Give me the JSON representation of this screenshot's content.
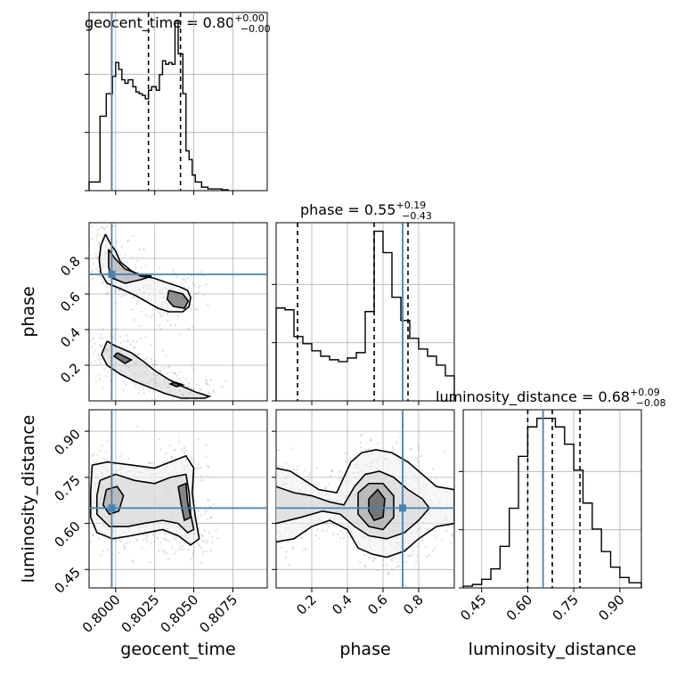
{
  "chart_data": {
    "type": "corner",
    "parameters": [
      {
        "name": "geocent_time",
        "axis_label": "geocent_time",
        "title": {
          "text": "geocent_time = 0.80",
          "plus": "+0.00",
          "minus": "−0.00"
        },
        "range": [
          0.7983,
          0.8097
        ],
        "ticks": [
          "0.8000",
          "0.8025",
          "0.8050",
          "0.8075"
        ],
        "tick_values": [
          0.8,
          0.8025,
          0.805,
          0.8075
        ],
        "quantiles": [
          0.79975,
          0.8021,
          0.80415
        ],
        "truth": 0.79975,
        "hist_bins": [
          0.7983,
          0.799,
          0.7994,
          0.7998,
          0.8,
          0.8002,
          0.8004,
          0.8006,
          0.8008,
          0.8011,
          0.8013,
          0.8015,
          0.8017,
          0.8019,
          0.8021,
          0.8023,
          0.8026,
          0.8028,
          0.803,
          0.8032,
          0.8034,
          0.8036,
          0.8038,
          0.804,
          0.8043,
          0.8045,
          0.8047,
          0.8049,
          0.8051,
          0.8055,
          0.8059,
          0.8063,
          0.8068,
          0.8072
        ],
        "hist_values": [
          0.05,
          0.43,
          0.56,
          0.66,
          0.74,
          0.7,
          0.64,
          0.62,
          0.64,
          0.6,
          0.57,
          0.56,
          0.55,
          0.53,
          0.58,
          0.6,
          0.58,
          0.67,
          0.75,
          0.73,
          0.74,
          0.73,
          0.98,
          0.79,
          0.56,
          0.23,
          0.18,
          0.09,
          0.05,
          0.02,
          0.01,
          0.01,
          0.005
        ]
      },
      {
        "name": "phase",
        "axis_label": "phase",
        "title": {
          "text": "phase = 0.55",
          "plus": "+0.19",
          "minus": "−0.43"
        },
        "range": [
          0.0,
          1.0
        ],
        "ticks": [
          "0.2",
          "0.4",
          "0.6",
          "0.8"
        ],
        "tick_values": [
          0.2,
          0.4,
          0.6,
          0.8
        ],
        "quantiles": [
          0.12,
          0.55,
          0.74
        ],
        "truth": 0.71,
        "hist_bins": [
          0.0,
          0.05,
          0.1,
          0.15,
          0.2,
          0.25,
          0.3,
          0.35,
          0.4,
          0.45,
          0.5,
          0.55,
          0.6,
          0.65,
          0.7,
          0.75,
          0.8,
          0.85,
          0.9,
          0.95,
          1.0
        ],
        "hist_values": [
          0.52,
          0.51,
          0.36,
          0.32,
          0.28,
          0.25,
          0.23,
          0.22,
          0.24,
          0.27,
          0.5,
          0.95,
          0.83,
          0.58,
          0.45,
          0.35,
          0.29,
          0.25,
          0.2,
          0.14
        ]
      },
      {
        "name": "luminosity_distance",
        "axis_label": "luminosity_distance",
        "title": {
          "text": "luminosity_distance = 0.68",
          "plus": "+0.09",
          "minus": "−0.08"
        },
        "range": [
          0.39,
          0.97
        ],
        "ticks": [
          "0.45",
          "0.60",
          "0.75",
          "0.90"
        ],
        "tick_values": [
          0.45,
          0.6,
          0.75,
          0.9
        ],
        "quantiles": [
          0.6,
          0.68,
          0.77
        ],
        "truth": 0.65,
        "hist_bins": [
          0.39,
          0.42,
          0.45,
          0.48,
          0.51,
          0.54,
          0.57,
          0.6,
          0.63,
          0.66,
          0.69,
          0.72,
          0.75,
          0.78,
          0.81,
          0.84,
          0.87,
          0.9,
          0.93,
          0.97
        ],
        "hist_values": [
          0.01,
          0.02,
          0.05,
          0.11,
          0.24,
          0.46,
          0.76,
          0.93,
          0.98,
          0.98,
          0.93,
          0.83,
          0.68,
          0.49,
          0.34,
          0.21,
          0.12,
          0.06,
          0.03
        ]
      }
    ],
    "pairs": [
      {
        "x": "geocent_time",
        "y": "phase",
        "contours": [
          [
            [
              0.79935,
              0.935
            ],
            [
              0.79965,
              0.885
            ],
            [
              0.8,
              0.84
            ],
            [
              0.8003,
              0.78
            ],
            [
              0.801,
              0.73
            ],
            [
              0.8016,
              0.7
            ],
            [
              0.8024,
              0.69
            ],
            [
              0.8034,
              0.66
            ],
            [
              0.8041,
              0.64
            ],
            [
              0.8046,
              0.62
            ],
            [
              0.8048,
              0.58
            ],
            [
              0.8047,
              0.53
            ],
            [
              0.8043,
              0.5
            ],
            [
              0.8034,
              0.5
            ],
            [
              0.8027,
              0.52
            ],
            [
              0.8021,
              0.55
            ],
            [
              0.8013,
              0.59
            ],
            [
              0.8003,
              0.63
            ],
            [
              0.79945,
              0.66
            ],
            [
              0.79905,
              0.72
            ],
            [
              0.79895,
              0.79
            ],
            [
              0.79905,
              0.87
            ],
            [
              0.79935,
              0.935
            ]
          ],
          [
            [
              0.79945,
              0.335
            ],
            [
              0.79995,
              0.31
            ],
            [
              0.801,
              0.27
            ],
            [
              0.8018,
              0.22
            ],
            [
              0.8025,
              0.17
            ],
            [
              0.8034,
              0.12
            ],
            [
              0.8043,
              0.08
            ],
            [
              0.8051,
              0.05
            ],
            [
              0.806,
              0.025
            ],
            [
              0.8057,
              0.015
            ],
            [
              0.8042,
              0.015
            ],
            [
              0.8032,
              0.04
            ],
            [
              0.8022,
              0.075
            ],
            [
              0.8012,
              0.11
            ],
            [
              0.8003,
              0.15
            ],
            [
              0.79945,
              0.2
            ],
            [
              0.7991,
              0.26
            ],
            [
              0.79945,
              0.335
            ]
          ],
          [
            [
              0.79955,
              0.85
            ],
            [
              0.79995,
              0.8
            ],
            [
              0.8006,
              0.74
            ],
            [
              0.8015,
              0.71
            ],
            [
              0.8023,
              0.7
            ],
            [
              0.8016,
              0.68
            ],
            [
              0.8006,
              0.66
            ],
            [
              0.79975,
              0.69
            ],
            [
              0.79955,
              0.75
            ],
            [
              0.79955,
              0.85
            ]
          ],
          [
            [
              0.8034,
              0.62
            ],
            [
              0.8043,
              0.6
            ],
            [
              0.80465,
              0.56
            ],
            [
              0.8044,
              0.52
            ],
            [
              0.8037,
              0.53
            ],
            [
              0.8033,
              0.57
            ],
            [
              0.8034,
              0.62
            ]
          ],
          [
            [
              0.8001,
              0.27
            ],
            [
              0.801,
              0.23
            ],
            [
              0.8006,
              0.21
            ],
            [
              0.7999,
              0.25
            ],
            [
              0.8001,
              0.27
            ]
          ],
          [
            [
              0.8038,
              0.105
            ],
            [
              0.8043,
              0.09
            ],
            [
              0.8039,
              0.08
            ],
            [
              0.8035,
              0.095
            ],
            [
              0.8038,
              0.105
            ]
          ]
        ]
      },
      {
        "x": "geocent_time",
        "y": "luminosity_distance",
        "contours": [
          [
            [
              0.7985,
              0.79
            ],
            [
              0.7995,
              0.8
            ],
            [
              0.801,
              0.79
            ],
            [
              0.8025,
              0.78
            ],
            [
              0.8035,
              0.8
            ],
            [
              0.8045,
              0.82
            ],
            [
              0.805,
              0.78
            ],
            [
              0.8049,
              0.7
            ],
            [
              0.8051,
              0.62
            ],
            [
              0.80535,
              0.55
            ],
            [
              0.8048,
              0.53
            ],
            [
              0.804,
              0.56
            ],
            [
              0.803,
              0.58
            ],
            [
              0.802,
              0.57
            ],
            [
              0.801,
              0.56
            ],
            [
              0.7998,
              0.55
            ],
            [
              0.7988,
              0.57
            ],
            [
              0.7984,
              0.62
            ],
            [
              0.7984,
              0.7
            ],
            [
              0.7985,
              0.79
            ]
          ],
          [
            [
              0.799,
              0.74
            ],
            [
              0.8,
              0.76
            ],
            [
              0.8012,
              0.74
            ],
            [
              0.8025,
              0.73
            ],
            [
              0.8035,
              0.75
            ],
            [
              0.8045,
              0.76
            ],
            [
              0.8047,
              0.7
            ],
            [
              0.8048,
              0.63
            ],
            [
              0.805,
              0.58
            ],
            [
              0.8046,
              0.57
            ],
            [
              0.804,
              0.6
            ],
            [
              0.803,
              0.61
            ],
            [
              0.8018,
              0.6
            ],
            [
              0.8008,
              0.59
            ],
            [
              0.7996,
              0.59
            ],
            [
              0.7988,
              0.63
            ],
            [
              0.7988,
              0.69
            ],
            [
              0.799,
              0.74
            ]
          ],
          [
            [
              0.7994,
              0.71
            ],
            [
              0.8001,
              0.72
            ],
            [
              0.8005,
              0.69
            ],
            [
              0.8002,
              0.64
            ],
            [
              0.7996,
              0.63
            ],
            [
              0.7992,
              0.66
            ],
            [
              0.7994,
              0.71
            ]
          ],
          [
            [
              0.804,
              0.72
            ],
            [
              0.8045,
              0.73
            ],
            [
              0.8046,
              0.67
            ],
            [
              0.8048,
              0.62
            ],
            [
              0.8044,
              0.61
            ],
            [
              0.8042,
              0.66
            ],
            [
              0.804,
              0.72
            ]
          ]
        ]
      },
      {
        "x": "phase",
        "y": "luminosity_distance",
        "contours": [
          [
            [
              0.0,
              0.78
            ],
            [
              0.08,
              0.77
            ],
            [
              0.16,
              0.74
            ],
            [
              0.24,
              0.71
            ],
            [
              0.34,
              0.7
            ],
            [
              0.42,
              0.8
            ],
            [
              0.48,
              0.83
            ],
            [
              0.56,
              0.84
            ],
            [
              0.65,
              0.83
            ],
            [
              0.74,
              0.8
            ],
            [
              0.82,
              0.76
            ],
            [
              0.9,
              0.72
            ],
            [
              1.0,
              0.71
            ],
            [
              1.0,
              0.6
            ],
            [
              0.9,
              0.59
            ],
            [
              0.8,
              0.55
            ],
            [
              0.72,
              0.51
            ],
            [
              0.62,
              0.49
            ],
            [
              0.54,
              0.5
            ],
            [
              0.46,
              0.52
            ],
            [
              0.4,
              0.58
            ],
            [
              0.3,
              0.61
            ],
            [
              0.2,
              0.59
            ],
            [
              0.1,
              0.55
            ],
            [
              0.0,
              0.54
            ]
          ],
          [
            [
              0.0,
              0.72
            ],
            [
              0.1,
              0.7
            ],
            [
              0.2,
              0.69
            ],
            [
              0.3,
              0.67
            ],
            [
              0.38,
              0.66
            ],
            [
              0.44,
              0.72
            ],
            [
              0.5,
              0.76
            ],
            [
              0.58,
              0.77
            ],
            [
              0.66,
              0.75
            ],
            [
              0.74,
              0.71
            ],
            [
              0.82,
              0.68
            ],
            [
              0.86,
              0.65
            ],
            [
              0.8,
              0.61
            ],
            [
              0.72,
              0.57
            ],
            [
              0.62,
              0.55
            ],
            [
              0.52,
              0.56
            ],
            [
              0.44,
              0.59
            ],
            [
              0.36,
              0.63
            ],
            [
              0.26,
              0.64
            ],
            [
              0.14,
              0.62
            ],
            [
              0.0,
              0.6
            ]
          ],
          [
            [
              0.46,
              0.7
            ],
            [
              0.52,
              0.73
            ],
            [
              0.6,
              0.73
            ],
            [
              0.66,
              0.69
            ],
            [
              0.66,
              0.62
            ],
            [
              0.6,
              0.58
            ],
            [
              0.52,
              0.59
            ],
            [
              0.46,
              0.63
            ],
            [
              0.46,
              0.7
            ]
          ],
          [
            [
              0.52,
              0.68
            ],
            [
              0.57,
              0.71
            ],
            [
              0.61,
              0.68
            ],
            [
              0.6,
              0.62
            ],
            [
              0.55,
              0.61
            ],
            [
              0.52,
              0.64
            ],
            [
              0.52,
              0.68
            ]
          ]
        ]
      }
    ]
  }
}
